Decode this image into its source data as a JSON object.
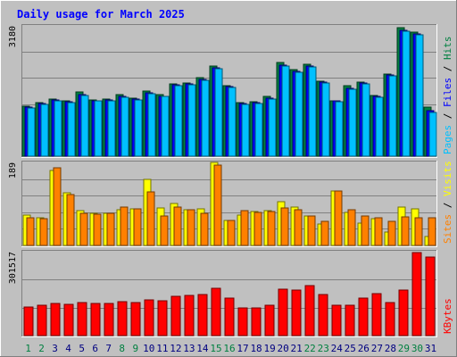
{
  "chart_data": {
    "type": "bar",
    "title": "Daily usage for March 2025",
    "categories": [
      "1",
      "2",
      "3",
      "4",
      "5",
      "6",
      "7",
      "8",
      "9",
      "10",
      "11",
      "12",
      "13",
      "14",
      "15",
      "16",
      "17",
      "18",
      "19",
      "20",
      "21",
      "22",
      "23",
      "24",
      "25",
      "26",
      "27",
      "28",
      "29",
      "30",
      "31"
    ],
    "weekend_days": [
      "1",
      "2",
      "8",
      "9",
      "15",
      "16",
      "22",
      "23",
      "29",
      "30"
    ],
    "panels": [
      {
        "id": "hits-files-pages",
        "scale_label": "3180",
        "ymax": 3180,
        "axis_label_parts": [
          "Pages",
          "Files",
          "Hits"
        ],
        "series": [
          {
            "name": "Hits",
            "color": "#008040",
            "values": [
              1230,
              1300,
              1390,
              1360,
              1560,
              1380,
              1390,
              1500,
              1410,
              1580,
              1500,
              1770,
              1790,
              1910,
              2210,
              1720,
              1310,
              1320,
              1460,
              2280,
              2110,
              2240,
              1830,
              1360,
              1710,
              1800,
              1480,
              2010,
              3130,
              3020,
              1200
            ]
          },
          {
            "name": "Files",
            "color": "#0000ff",
            "values": [
              1200,
              1280,
              1370,
              1330,
              1510,
              1360,
              1380,
              1460,
              1390,
              1540,
              1470,
              1740,
              1760,
              1880,
              2160,
              1700,
              1290,
              1300,
              1420,
              2230,
              2070,
              2190,
              1800,
              1340,
              1660,
              1780,
              1460,
              1980,
              3080,
              2980,
              1100
            ]
          },
          {
            "name": "Pages",
            "color": "#00c0ff",
            "values": [
              1180,
              1260,
              1350,
              1310,
              1490,
              1340,
              1360,
              1440,
              1370,
              1520,
              1450,
              1720,
              1740,
              1860,
              2140,
              1680,
              1270,
              1280,
              1400,
              2210,
              2040,
              2170,
              1780,
              1320,
              1640,
              1760,
              1440,
              1960,
              3060,
              2960,
              1060
            ]
          }
        ]
      },
      {
        "id": "visits-sites",
        "scale_label": "189",
        "ymax": 189,
        "axis_label_parts": [
          "Sites",
          "Visits"
        ],
        "series": [
          {
            "name": "Visits",
            "color": "#ffff00",
            "values": [
              70,
              64,
              170,
              120,
              79,
              73,
              74,
              82,
              84,
              150,
              85,
              96,
              81,
              84,
              189,
              57,
              70,
              77,
              80,
              100,
              88,
              68,
              49,
              124,
              75,
              50,
              61,
              30,
              88,
              84,
              20
            ]
          },
          {
            "name": "Sites",
            "color": "#ff8000",
            "values": [
              64,
              60,
              177,
              115,
              74,
              71,
              73,
              87,
              83,
              121,
              67,
              88,
              81,
              73,
              183,
              57,
              79,
              75,
              78,
              86,
              81,
              68,
              54,
              123,
              82,
              68,
              62,
              55,
              66,
              62,
              63
            ]
          }
        ]
      },
      {
        "id": "kbytes",
        "scale_label": "301517",
        "ymax": 301517,
        "axis_label_parts": [
          "KBytes"
        ],
        "series": [
          {
            "name": "KBytes",
            "color": "#ff0000",
            "values": [
              102000,
              108000,
              115000,
              112000,
              120000,
              116000,
              116000,
              122000,
              120000,
              127000,
              125000,
              142000,
              145000,
              148000,
              170000,
              136000,
              100000,
              101000,
              108000,
              167000,
              162000,
              181000,
              146000,
              108000,
              110000,
              136000,
              150000,
              120000,
              164000,
              298000,
              282000
            ]
          }
        ]
      }
    ]
  },
  "colors": {
    "background": "#c0c0c0",
    "plot_bg": "#c0c0c0",
    "title_text": "#0000ff",
    "weekday_label": "#000080",
    "weekend_label": "#008040",
    "grid": "#808080"
  }
}
